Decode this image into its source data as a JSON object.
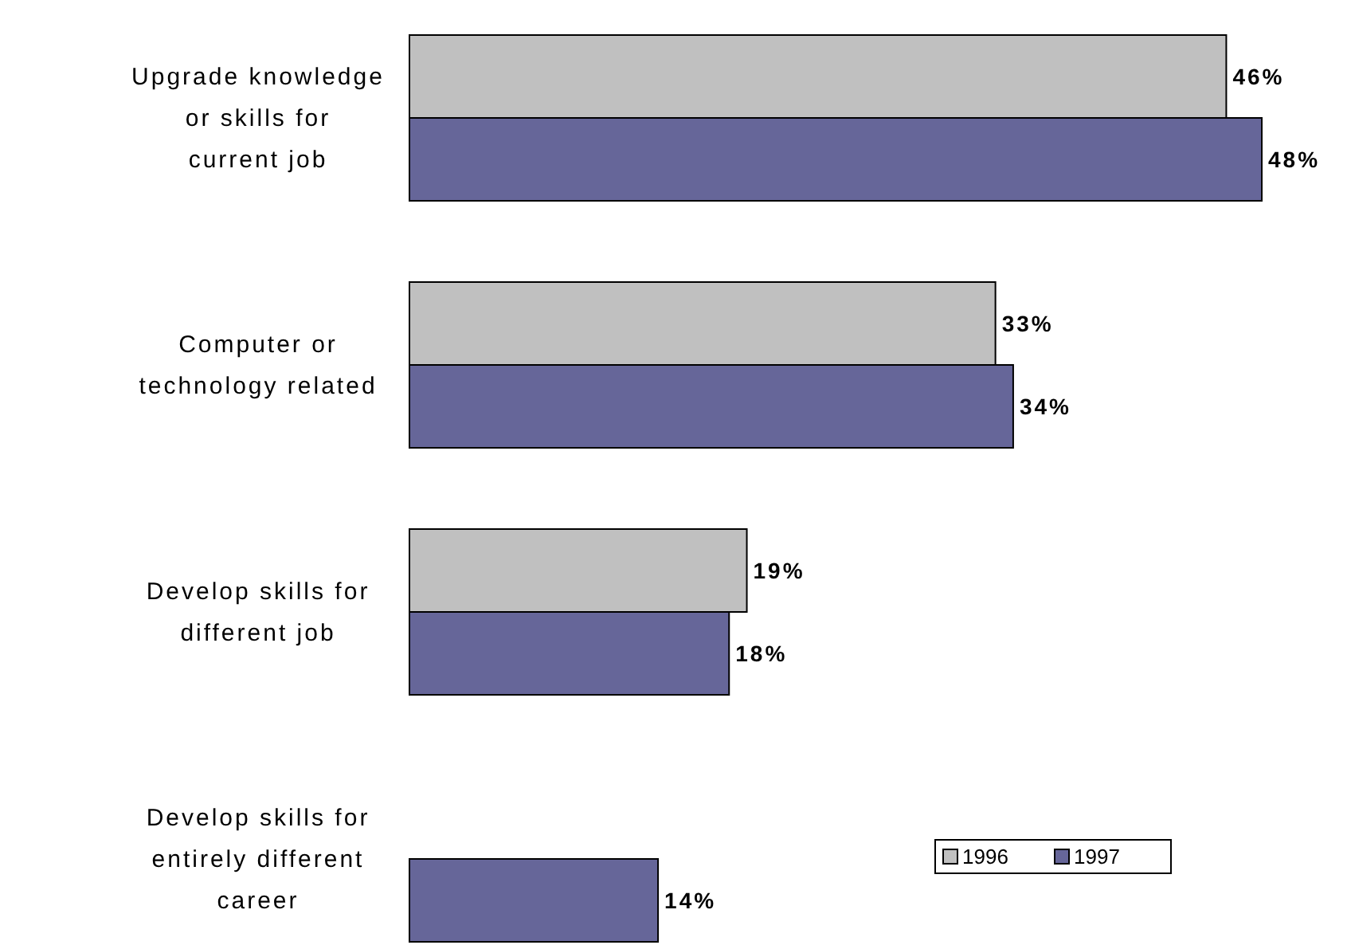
{
  "chart_data": {
    "type": "bar",
    "orientation": "horizontal",
    "categories": [
      "Upgrade knowledge or skills for current job",
      "Computer or technology related",
      "Develop skills for different job",
      "Develop skills for entirely different career"
    ],
    "series": [
      {
        "name": "1996",
        "color": "#c0c0c0",
        "values": [
          46,
          33,
          19,
          null
        ],
        "value_labels": [
          "46%",
          "33%",
          "19%",
          null
        ]
      },
      {
        "name": "1997",
        "color": "#666699",
        "values": [
          48,
          34,
          18,
          14
        ],
        "value_labels": [
          "48%",
          "34%",
          "18%",
          "14%"
        ]
      }
    ],
    "legend": "bottom right"
  }
}
